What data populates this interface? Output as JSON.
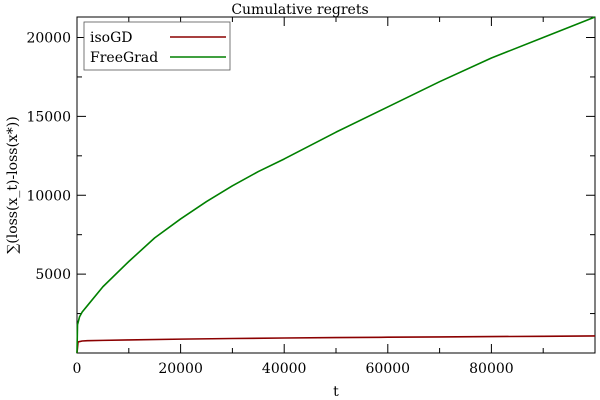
{
  "chart_data": {
    "type": "line",
    "title": "Cumulative regrets",
    "xlabel": "t",
    "ylabel": "∑(loss(x_t)-loss(x*))",
    "xlim": [
      0,
      100000
    ],
    "ylim": [
      0,
      21300
    ],
    "xticks": [
      0,
      20000,
      40000,
      60000,
      80000
    ],
    "yticks": [
      5000,
      10000,
      15000,
      20000
    ],
    "legend_position": "top-left",
    "grid": false,
    "series": [
      {
        "name": "isoGD",
        "color": "#8b0000",
        "x": [
          0,
          200,
          1000,
          2000,
          5000,
          10000,
          20000,
          30000,
          40000,
          50000,
          60000,
          70000,
          80000,
          90000,
          100000
        ],
        "y": [
          0,
          700,
          760,
          780,
          800,
          830,
          880,
          920,
          950,
          980,
          1000,
          1020,
          1040,
          1060,
          1080
        ]
      },
      {
        "name": "FreeGrad",
        "color": "#008000",
        "x": [
          0,
          100,
          500,
          1000,
          2000,
          5000,
          10000,
          15000,
          20000,
          25000,
          30000,
          35000,
          40000,
          50000,
          60000,
          70000,
          80000,
          90000,
          100000
        ],
        "y": [
          0,
          1800,
          2300,
          2600,
          3000,
          4200,
          5800,
          7300,
          8500,
          9600,
          10600,
          11500,
          12300,
          14000,
          15600,
          17200,
          18700,
          20000,
          21300
        ]
      }
    ]
  }
}
